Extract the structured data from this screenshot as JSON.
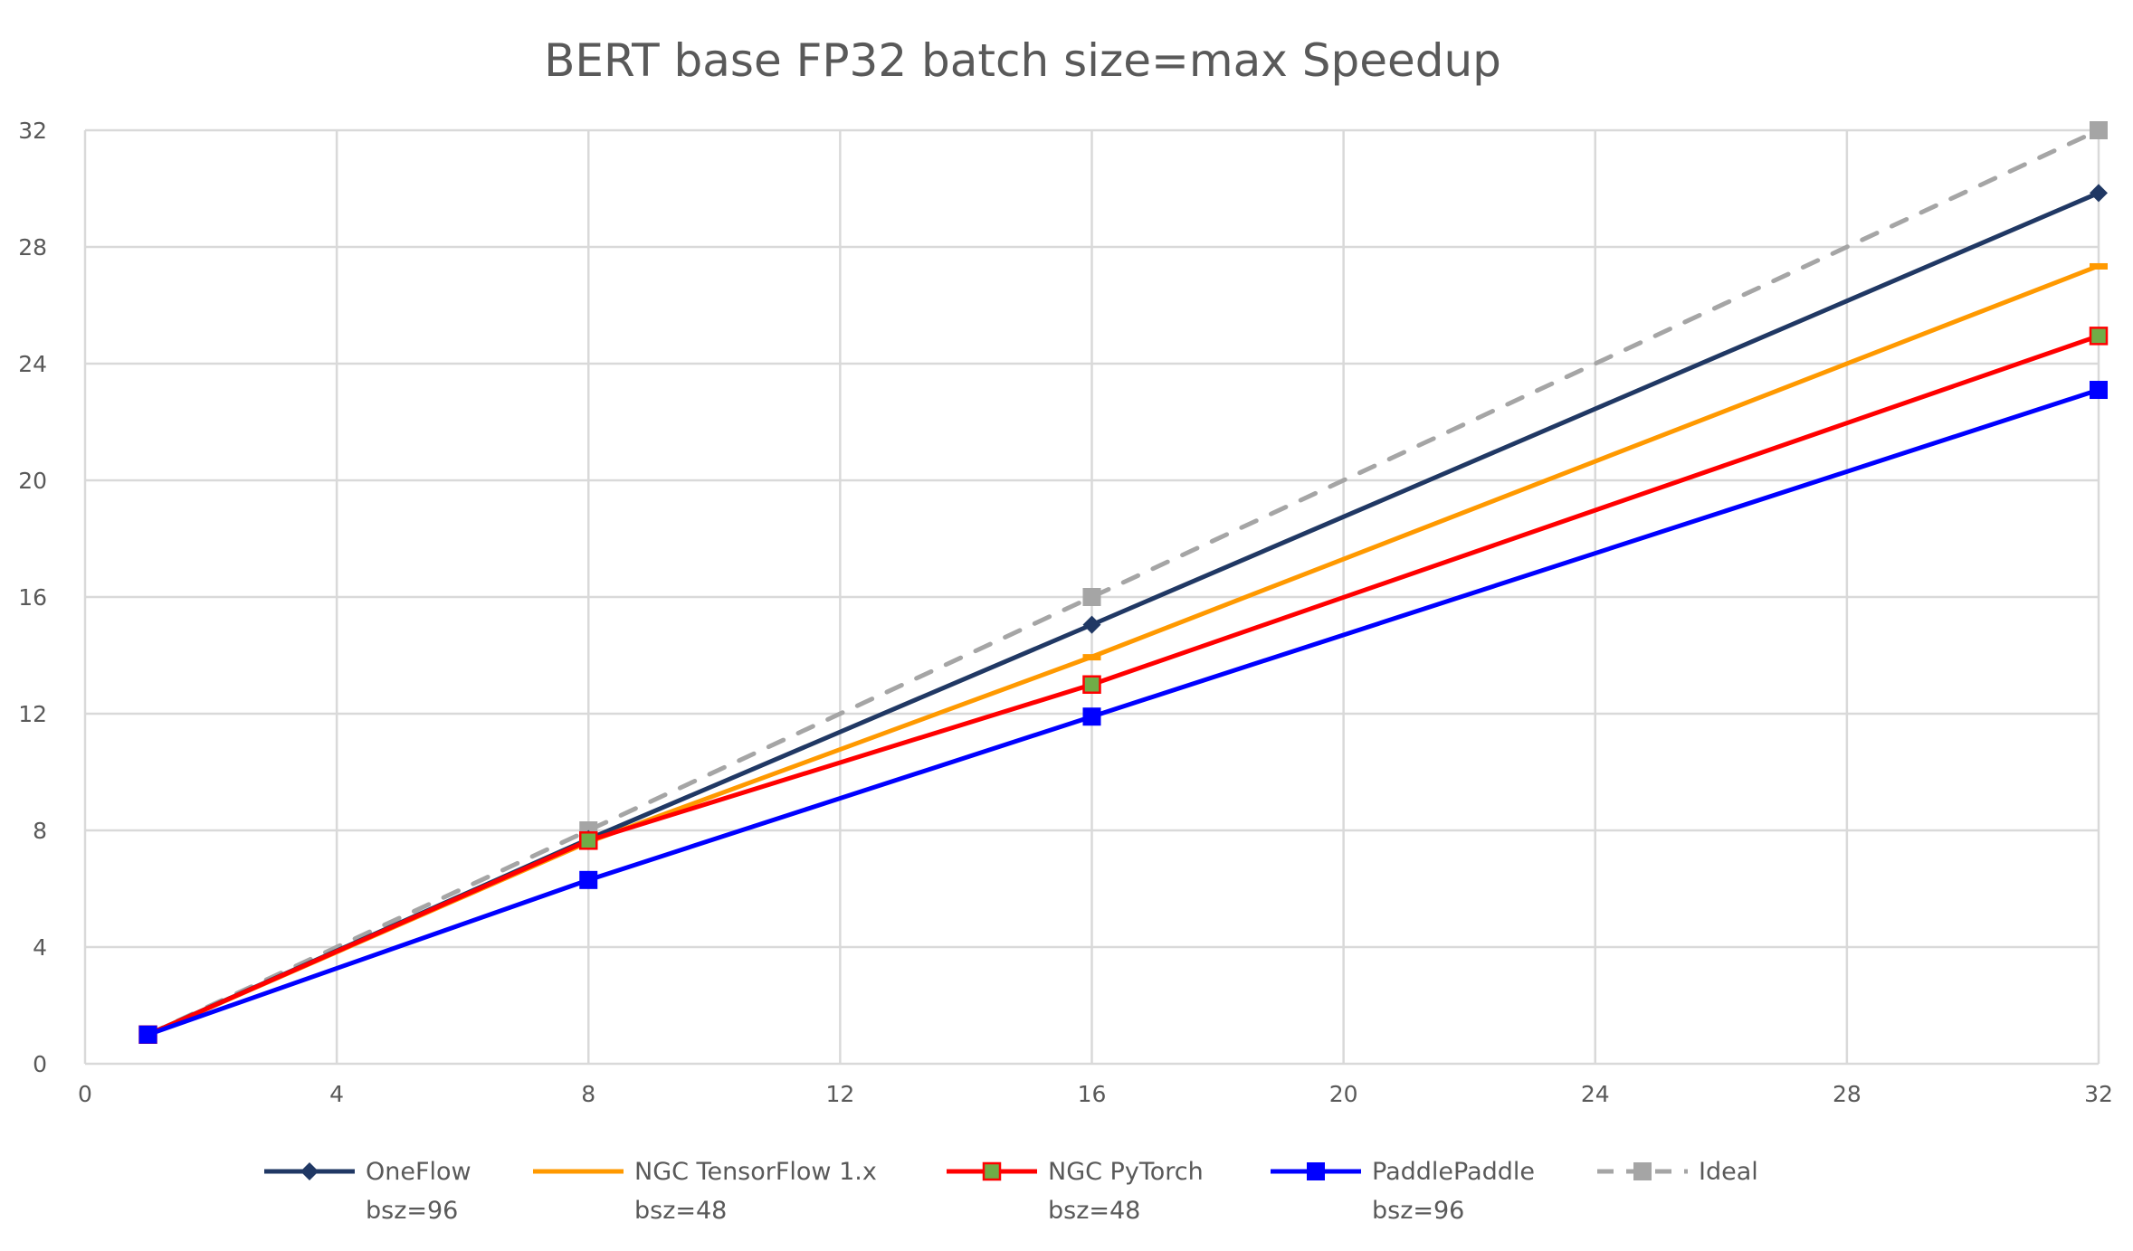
{
  "chart_data": {
    "type": "line",
    "title": "BERT base FP32 batch size=max Speedup",
    "xlabel": "",
    "ylabel": "",
    "xlim": [
      0,
      32
    ],
    "ylim": [
      0,
      32
    ],
    "xticks": [
      0,
      4,
      8,
      12,
      16,
      20,
      24,
      28,
      32
    ],
    "yticks": [
      0,
      4,
      8,
      12,
      16,
      20,
      24,
      28,
      32
    ],
    "grid": true,
    "legend_position": "bottom",
    "series": [
      {
        "name": "OneFlow",
        "sub": "bsz=96",
        "color": "#203864",
        "marker": "diamond",
        "dashed": false,
        "x": [
          1,
          8,
          16,
          32
        ],
        "y": [
          1,
          7.7,
          15.05,
          29.85
        ]
      },
      {
        "name": "NGC TensorFlow 1.x",
        "sub": "bsz=48",
        "color": "#FF9900",
        "marker": "dash",
        "dashed": false,
        "x": [
          1,
          8,
          16,
          32
        ],
        "y": [
          1,
          7.6,
          13.95,
          27.35
        ]
      },
      {
        "name": "NGC PyTorch",
        "sub": "bsz=48",
        "color": "#FF0000",
        "marker": "square-green",
        "markerFill": "#70AD47",
        "dashed": false,
        "x": [
          1,
          8,
          16,
          32
        ],
        "y": [
          1,
          7.65,
          13.0,
          24.95
        ]
      },
      {
        "name": "PaddlePaddle",
        "sub": "bsz=96",
        "color": "#0000FF",
        "marker": "square",
        "dashed": false,
        "x": [
          1,
          8,
          16,
          32
        ],
        "y": [
          1,
          6.3,
          11.9,
          23.1
        ]
      },
      {
        "name": "Ideal",
        "sub": "",
        "color": "#A5A5A5",
        "marker": "square",
        "dashed": true,
        "x": [
          1,
          8,
          16,
          32
        ],
        "y": [
          1,
          8,
          16,
          32
        ]
      }
    ]
  }
}
